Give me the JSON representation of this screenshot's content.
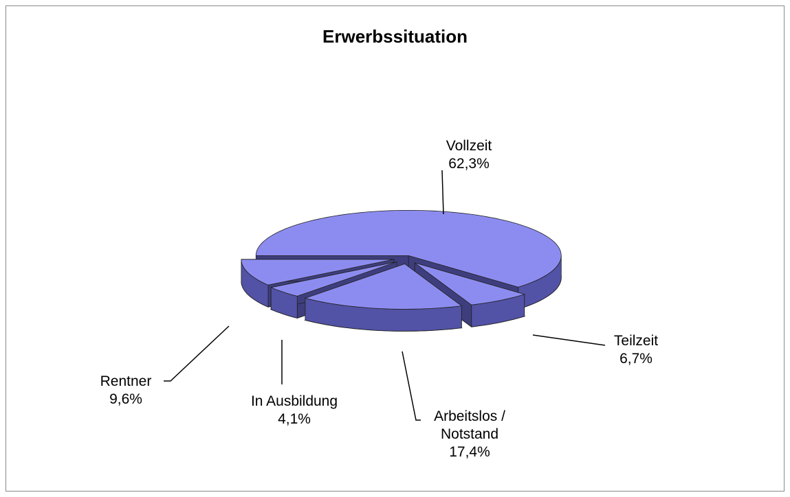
{
  "chart_data": {
    "type": "pie3d",
    "title": "Erwerbssituation",
    "categories": [
      "Vollzeit",
      "Teilzeit",
      "Arbeitslos / Notstand",
      "In Ausbildung",
      "Rentner"
    ],
    "values": [
      62.3,
      6.7,
      17.4,
      4.1,
      9.6
    ],
    "value_labels": [
      "62,3%",
      "6,7%",
      "17,4%",
      "4,1%",
      "9,6%"
    ],
    "color": "#8c8cf0"
  }
}
